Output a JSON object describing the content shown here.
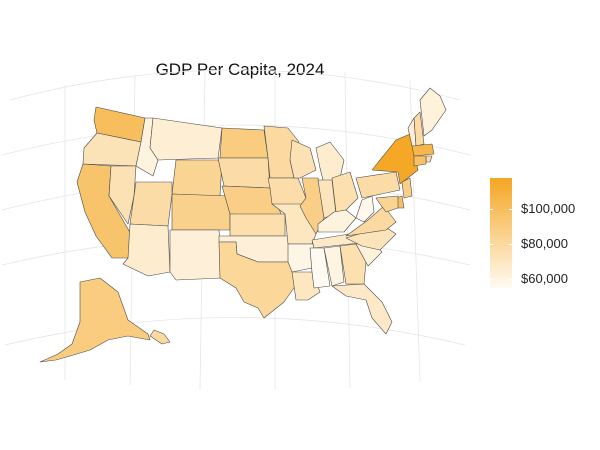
{
  "title": "GDP Per Capita, 2024",
  "legend": {
    "ticks": [
      "$60,000",
      "$80,000",
      "$100,000"
    ],
    "tick_values": [
      60000,
      80000,
      100000
    ],
    "range": [
      55000,
      118000
    ],
    "color_low": "#fffbf2",
    "color_high": "#f5a623"
  },
  "chart_data": {
    "type": "choropleth",
    "title": "GDP Per Capita, 2024",
    "metric": "GDP per capita (USD), approximate from color scale",
    "states": [
      {
        "id": "WA",
        "value": 100000
      },
      {
        "id": "OR",
        "value": 73000
      },
      {
        "id": "CA",
        "value": 96000
      },
      {
        "id": "NV",
        "value": 74000
      },
      {
        "id": "ID",
        "value": 61000
      },
      {
        "id": "MT",
        "value": 64000
      },
      {
        "id": "WY",
        "value": 84000
      },
      {
        "id": "UT",
        "value": 78000
      },
      {
        "id": "AZ",
        "value": 66000
      },
      {
        "id": "CO",
        "value": 86000
      },
      {
        "id": "NM",
        "value": 63000
      },
      {
        "id": "ND",
        "value": 90000
      },
      {
        "id": "SD",
        "value": 78000
      },
      {
        "id": "NE",
        "value": 88000
      },
      {
        "id": "KS",
        "value": 76000
      },
      {
        "id": "OK",
        "value": 63000
      },
      {
        "id": "TX",
        "value": 82000
      },
      {
        "id": "MN",
        "value": 80000
      },
      {
        "id": "IA",
        "value": 77000
      },
      {
        "id": "MO",
        "value": 70000
      },
      {
        "id": "AR",
        "value": 59000
      },
      {
        "id": "LA",
        "value": 70000
      },
      {
        "id": "WI",
        "value": 74000
      },
      {
        "id": "IL",
        "value": 88000
      },
      {
        "id": "MI",
        "value": 66000
      },
      {
        "id": "IN",
        "value": 71000
      },
      {
        "id": "OH",
        "value": 75000
      },
      {
        "id": "KY",
        "value": 61000
      },
      {
        "id": "TN",
        "value": 68000
      },
      {
        "id": "MS",
        "value": 52000
      },
      {
        "id": "AL",
        "value": 60000
      },
      {
        "id": "GA",
        "value": 75000
      },
      {
        "id": "FL",
        "value": 68000
      },
      {
        "id": "SC",
        "value": 62000
      },
      {
        "id": "NC",
        "value": 72000
      },
      {
        "id": "VA",
        "value": 80000
      },
      {
        "id": "WV",
        "value": 57000
      },
      {
        "id": "PA",
        "value": 78000
      },
      {
        "id": "NY",
        "value": 117000
      },
      {
        "id": "VT",
        "value": 63000
      },
      {
        "id": "NH",
        "value": 79000
      },
      {
        "id": "ME",
        "value": 62000
      },
      {
        "id": "MA",
        "value": 106000
      },
      {
        "id": "RI",
        "value": 76000
      },
      {
        "id": "CT",
        "value": 98000
      },
      {
        "id": "NJ",
        "value": 88000
      },
      {
        "id": "DE",
        "value": 98000
      },
      {
        "id": "MD",
        "value": 84000
      },
      {
        "id": "AK",
        "value": 90000
      },
      {
        "id": "HI",
        "value": 80000
      }
    ]
  }
}
